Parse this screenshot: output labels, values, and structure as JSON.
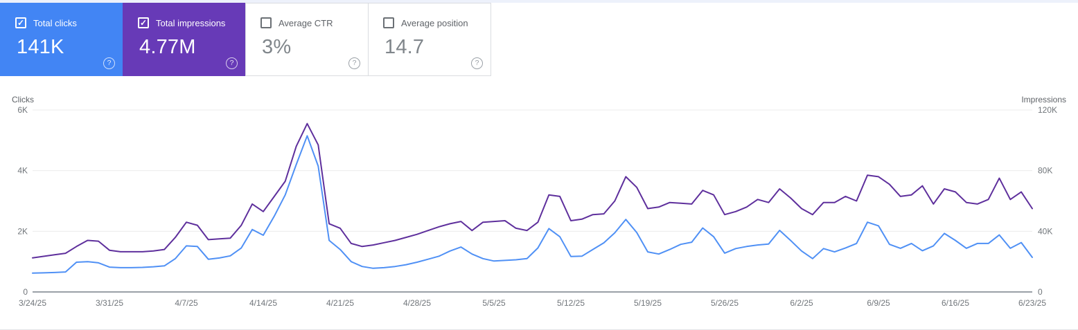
{
  "page": {
    "top_strip_color": "#edf1fb",
    "background": "#ffffff"
  },
  "icons": {
    "check_glyph": "✓",
    "help_glyph": "?"
  },
  "cards": [
    {
      "label": "Total clicks",
      "value": "141K",
      "checked": true,
      "bg": "#4285f4"
    },
    {
      "label": "Total impressions",
      "value": "4.77M",
      "checked": true,
      "bg": "#673ab7"
    },
    {
      "label": "Average CTR",
      "value": "3%",
      "checked": false
    },
    {
      "label": "Average position",
      "value": "14.7",
      "checked": false
    }
  ],
  "chart_data": {
    "type": "line",
    "x": [
      "3/24/25",
      "3/25/25",
      "3/26/25",
      "3/27/25",
      "3/28/25",
      "3/29/25",
      "3/30/25",
      "3/31/25",
      "4/1/25",
      "4/2/25",
      "4/3/25",
      "4/4/25",
      "4/5/25",
      "4/6/25",
      "4/7/25",
      "4/8/25",
      "4/9/25",
      "4/10/25",
      "4/11/25",
      "4/12/25",
      "4/13/25",
      "4/14/25",
      "4/15/25",
      "4/16/25",
      "4/17/25",
      "4/18/25",
      "4/19/25",
      "4/20/25",
      "4/21/25",
      "4/22/25",
      "4/23/25",
      "4/24/25",
      "4/25/25",
      "4/26/25",
      "4/27/25",
      "4/28/25",
      "4/29/25",
      "4/30/25",
      "5/1/25",
      "5/2/25",
      "5/3/25",
      "5/4/25",
      "5/5/25",
      "5/6/25",
      "5/7/25",
      "5/8/25",
      "5/9/25",
      "5/10/25",
      "5/11/25",
      "5/12/25",
      "5/13/25",
      "5/14/25",
      "5/15/25",
      "5/16/25",
      "5/17/25",
      "5/18/25",
      "5/19/25",
      "5/20/25",
      "5/21/25",
      "5/22/25",
      "5/23/25",
      "5/24/25",
      "5/25/25",
      "5/26/25",
      "5/27/25",
      "5/28/25",
      "5/29/25",
      "5/30/25",
      "5/31/25",
      "6/1/25",
      "6/2/25",
      "6/3/25",
      "6/4/25",
      "6/5/25",
      "6/6/25",
      "6/7/25",
      "6/8/25",
      "6/9/25",
      "6/10/25",
      "6/11/25",
      "6/12/25",
      "6/13/25",
      "6/14/25",
      "6/15/25",
      "6/16/25",
      "6/17/25",
      "6/18/25",
      "6/19/25",
      "6/20/25",
      "6/21/25",
      "6/22/25",
      "6/23/25"
    ],
    "x_tick_labels": [
      "3/24/25",
      "3/31/25",
      "4/7/25",
      "4/14/25",
      "4/21/25",
      "4/28/25",
      "5/5/25",
      "5/12/25",
      "5/19/25",
      "5/26/25",
      "6/2/25",
      "6/9/25",
      "6/16/25",
      "6/23/25"
    ],
    "series": [
      {
        "name": "Clicks",
        "axis": "left",
        "color": "#4f90f5",
        "values": [
          620,
          630,
          640,
          660,
          980,
          1000,
          960,
          820,
          800,
          800,
          810,
          830,
          860,
          1100,
          1520,
          1500,
          1080,
          1120,
          1190,
          1450,
          2060,
          1870,
          2500,
          3200,
          4200,
          5150,
          4150,
          1700,
          1400,
          1000,
          840,
          780,
          800,
          840,
          900,
          980,
          1080,
          1180,
          1350,
          1480,
          1250,
          1100,
          1020,
          1040,
          1060,
          1100,
          1450,
          2090,
          1820,
          1170,
          1180,
          1400,
          1620,
          1950,
          2390,
          1960,
          1320,
          1250,
          1400,
          1570,
          1640,
          2110,
          1820,
          1280,
          1430,
          1500,
          1550,
          1580,
          2030,
          1700,
          1350,
          1100,
          1430,
          1320,
          1450,
          1600,
          2300,
          2180,
          1570,
          1440,
          1600,
          1360,
          1520,
          1930,
          1700,
          1440,
          1600,
          1600,
          1880,
          1440,
          1630,
          1140
        ]
      },
      {
        "name": "Impressions",
        "axis": "right",
        "color": "#5e2f9c",
        "values": [
          22500,
          23500,
          24500,
          25500,
          30000,
          34000,
          33500,
          27500,
          26500,
          26500,
          26500,
          27000,
          28000,
          36000,
          46000,
          44000,
          34500,
          35000,
          35500,
          44000,
          58000,
          53000,
          63000,
          73000,
          96000,
          111000,
          97000,
          45000,
          42000,
          32000,
          30000,
          31000,
          32500,
          34000,
          36000,
          38000,
          40500,
          43000,
          45000,
          46500,
          40500,
          46000,
          46500,
          47000,
          42000,
          40500,
          46000,
          64000,
          63000,
          47000,
          48000,
          51000,
          51500,
          60000,
          76000,
          69000,
          55000,
          56000,
          59000,
          58500,
          58000,
          67000,
          64000,
          51000,
          53000,
          56000,
          61000,
          59000,
          68000,
          62000,
          55000,
          51000,
          59000,
          59000,
          63000,
          60000,
          77000,
          76000,
          71000,
          63000,
          64000,
          70000,
          58000,
          68000,
          66000,
          59000,
          58000,
          61000,
          75000,
          61000,
          66000,
          55000
        ]
      }
    ],
    "left_axis": {
      "title": "Clicks",
      "ticks": [
        "0",
        "2K",
        "4K",
        "6K"
      ],
      "min": 0,
      "max": 6000
    },
    "right_axis": {
      "title": "Impressions",
      "ticks": [
        "0",
        "40K",
        "80K",
        "120K"
      ],
      "min": 0,
      "max": 120000
    },
    "grid": true,
    "grid_color": "#ececec",
    "baseline_color": "#9aa0a6",
    "legend_position": "none"
  }
}
